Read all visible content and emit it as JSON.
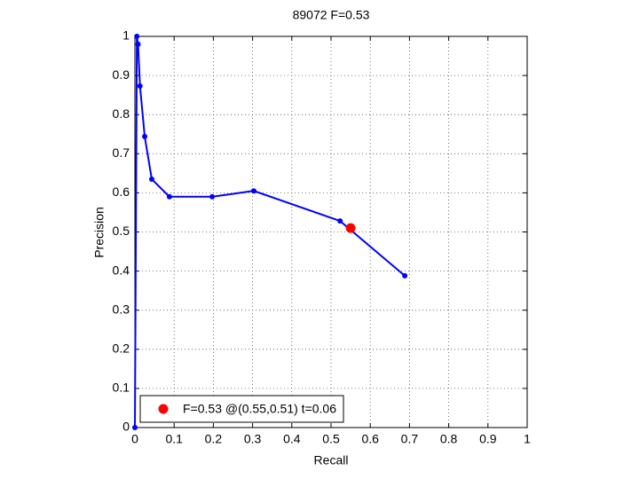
{
  "chart_data": {
    "type": "line",
    "title": "89072 F=0.53",
    "x_label": "Recall",
    "y_label": "Precision",
    "xlim": [
      0,
      1
    ],
    "ylim": [
      0,
      1
    ],
    "xticks": [
      0,
      0.1,
      0.2,
      0.3,
      0.4,
      0.5,
      0.6,
      0.7,
      0.8,
      0.9,
      1
    ],
    "yticks": [
      0,
      0.1,
      0.2,
      0.3,
      0.4,
      0.5,
      0.6,
      0.7,
      0.8,
      0.9,
      1
    ],
    "grid": true,
    "legend": "lower left",
    "series": [
      {
        "color": "#0000ff",
        "x": [
          0,
          0.005,
          0.008,
          0.013,
          0.025,
          0.043,
          0.088,
          0.197,
          0.303,
          0.523,
          0.688
        ],
        "values": [
          0,
          1.0,
          0.98,
          0.873,
          0.744,
          0.635,
          0.59,
          0.59,
          0.605,
          0.528,
          0.388
        ]
      },
      {
        "name": "F=0.53 @(0.55,0.51) t=0.06",
        "color": "#ff0000",
        "x": [
          0.55
        ],
        "values": [
          0.51
        ]
      }
    ]
  }
}
